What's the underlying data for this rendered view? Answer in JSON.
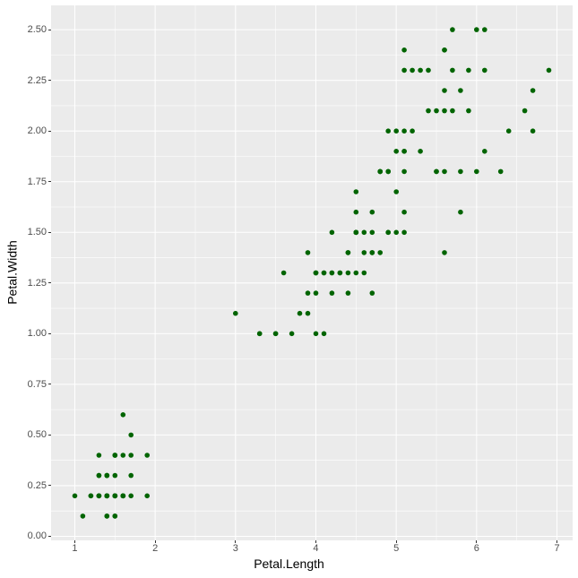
{
  "chart_data": {
    "type": "scatter",
    "title": "",
    "xlabel": "Petal.Length",
    "ylabel": "Petal.Width",
    "legend_position": "none",
    "grid": {
      "major": true,
      "minor": true
    },
    "xlim": [
      0.705,
      7.195
    ],
    "ylim": [
      -0.02,
      2.62
    ],
    "x_ticks": {
      "values": [
        1,
        2,
        3,
        4,
        5,
        6,
        7
      ],
      "labels": [
        "1",
        "2",
        "3",
        "4",
        "5",
        "6",
        "7"
      ]
    },
    "y_ticks": {
      "values": [
        0,
        0.25,
        0.5,
        0.75,
        1,
        1.25,
        1.5,
        1.75,
        2,
        2.25,
        2.5
      ],
      "labels": [
        "0.00",
        "0.25",
        "0.50",
        "0.75",
        "1.00",
        "1.25",
        "1.50",
        "1.75",
        "2.00",
        "2.25",
        "2.50"
      ]
    },
    "points": [
      [
        1.4,
        0.2
      ],
      [
        1.4,
        0.2
      ],
      [
        1.3,
        0.2
      ],
      [
        1.5,
        0.2
      ],
      [
        1.4,
        0.2
      ],
      [
        1.7,
        0.4
      ],
      [
        1.4,
        0.3
      ],
      [
        1.5,
        0.2
      ],
      [
        1.4,
        0.2
      ],
      [
        1.5,
        0.1
      ],
      [
        1.5,
        0.2
      ],
      [
        1.6,
        0.2
      ],
      [
        1.4,
        0.1
      ],
      [
        1.1,
        0.1
      ],
      [
        1.2,
        0.2
      ],
      [
        1.5,
        0.4
      ],
      [
        1.3,
        0.4
      ],
      [
        1.4,
        0.3
      ],
      [
        1.7,
        0.3
      ],
      [
        1.5,
        0.3
      ],
      [
        1.7,
        0.2
      ],
      [
        1.5,
        0.4
      ],
      [
        1.0,
        0.2
      ],
      [
        1.7,
        0.5
      ],
      [
        1.9,
        0.2
      ],
      [
        1.6,
        0.2
      ],
      [
        1.6,
        0.4
      ],
      [
        1.5,
        0.2
      ],
      [
        1.4,
        0.2
      ],
      [
        1.6,
        0.2
      ],
      [
        1.6,
        0.2
      ],
      [
        1.5,
        0.4
      ],
      [
        1.5,
        0.1
      ],
      [
        1.4,
        0.2
      ],
      [
        1.5,
        0.2
      ],
      [
        1.2,
        0.2
      ],
      [
        1.3,
        0.2
      ],
      [
        1.4,
        0.1
      ],
      [
        1.3,
        0.2
      ],
      [
        1.5,
        0.2
      ],
      [
        1.3,
        0.3
      ],
      [
        1.3,
        0.3
      ],
      [
        1.3,
        0.2
      ],
      [
        1.6,
        0.6
      ],
      [
        1.9,
        0.4
      ],
      [
        1.4,
        0.3
      ],
      [
        1.6,
        0.2
      ],
      [
        1.4,
        0.2
      ],
      [
        1.5,
        0.2
      ],
      [
        1.4,
        0.2
      ],
      [
        4.7,
        1.4
      ],
      [
        4.5,
        1.5
      ],
      [
        4.9,
        1.5
      ],
      [
        4.0,
        1.3
      ],
      [
        4.6,
        1.5
      ],
      [
        4.5,
        1.3
      ],
      [
        4.7,
        1.6
      ],
      [
        3.3,
        1.0
      ],
      [
        4.6,
        1.3
      ],
      [
        3.9,
        1.4
      ],
      [
        3.5,
        1.0
      ],
      [
        4.2,
        1.5
      ],
      [
        4.0,
        1.0
      ],
      [
        4.7,
        1.4
      ],
      [
        3.6,
        1.3
      ],
      [
        4.4,
        1.4
      ],
      [
        4.5,
        1.5
      ],
      [
        4.1,
        1.0
      ],
      [
        4.5,
        1.5
      ],
      [
        3.9,
        1.1
      ],
      [
        4.8,
        1.8
      ],
      [
        4.0,
        1.3
      ],
      [
        4.9,
        1.5
      ],
      [
        4.7,
        1.2
      ],
      [
        4.3,
        1.3
      ],
      [
        4.4,
        1.4
      ],
      [
        4.8,
        1.4
      ],
      [
        5.0,
        1.7
      ],
      [
        4.5,
        1.5
      ],
      [
        3.5,
        1.0
      ],
      [
        3.8,
        1.1
      ],
      [
        3.7,
        1.0
      ],
      [
        3.9,
        1.2
      ],
      [
        5.1,
        1.6
      ],
      [
        4.5,
        1.5
      ],
      [
        4.5,
        1.6
      ],
      [
        4.7,
        1.5
      ],
      [
        4.4,
        1.3
      ],
      [
        4.1,
        1.3
      ],
      [
        4.0,
        1.3
      ],
      [
        4.4,
        1.2
      ],
      [
        4.6,
        1.4
      ],
      [
        4.0,
        1.2
      ],
      [
        3.3,
        1.0
      ],
      [
        4.2,
        1.3
      ],
      [
        4.2,
        1.2
      ],
      [
        4.2,
        1.3
      ],
      [
        4.3,
        1.3
      ],
      [
        3.0,
        1.1
      ],
      [
        4.1,
        1.3
      ],
      [
        6.0,
        2.5
      ],
      [
        5.1,
        1.9
      ],
      [
        5.9,
        2.1
      ],
      [
        5.6,
        1.8
      ],
      [
        5.8,
        2.2
      ],
      [
        6.6,
        2.1
      ],
      [
        4.5,
        1.7
      ],
      [
        6.3,
        1.8
      ],
      [
        5.8,
        1.8
      ],
      [
        6.1,
        2.5
      ],
      [
        5.1,
        2.0
      ],
      [
        5.3,
        1.9
      ],
      [
        5.5,
        2.1
      ],
      [
        5.0,
        2.0
      ],
      [
        5.1,
        2.4
      ],
      [
        5.3,
        2.3
      ],
      [
        5.5,
        1.8
      ],
      [
        6.7,
        2.2
      ],
      [
        6.9,
        2.3
      ],
      [
        5.0,
        1.5
      ],
      [
        5.7,
        2.3
      ],
      [
        4.9,
        2.0
      ],
      [
        6.7,
        2.0
      ],
      [
        4.9,
        1.8
      ],
      [
        5.7,
        2.1
      ],
      [
        6.0,
        1.8
      ],
      [
        4.8,
        1.8
      ],
      [
        4.9,
        1.8
      ],
      [
        5.6,
        2.1
      ],
      [
        5.8,
        1.6
      ],
      [
        6.1,
        1.9
      ],
      [
        6.4,
        2.0
      ],
      [
        5.6,
        2.2
      ],
      [
        5.1,
        1.5
      ],
      [
        5.6,
        1.4
      ],
      [
        6.1,
        2.3
      ],
      [
        5.6,
        2.4
      ],
      [
        5.5,
        1.8
      ],
      [
        4.8,
        1.8
      ],
      [
        5.4,
        2.1
      ],
      [
        5.6,
        2.4
      ],
      [
        5.1,
        2.3
      ],
      [
        5.1,
        1.9
      ],
      [
        5.9,
        2.3
      ],
      [
        5.7,
        2.5
      ],
      [
        5.2,
        2.3
      ],
      [
        5.0,
        1.9
      ],
      [
        5.2,
        2.0
      ],
      [
        5.4,
        2.3
      ],
      [
        5.1,
        1.8
      ]
    ]
  },
  "style": {
    "point_color": "#006400",
    "point_radius": 2.8,
    "panel_bg": "#EBEBEB",
    "grid_color": "#FFFFFF",
    "major_grid_width": 1.05,
    "minor_grid_width": 0.55,
    "tick_label_color": "#4D4D4D",
    "tick_mark_color": "#333333",
    "axis_title_color": "#000000",
    "page_bg": "#FFFFFF"
  }
}
